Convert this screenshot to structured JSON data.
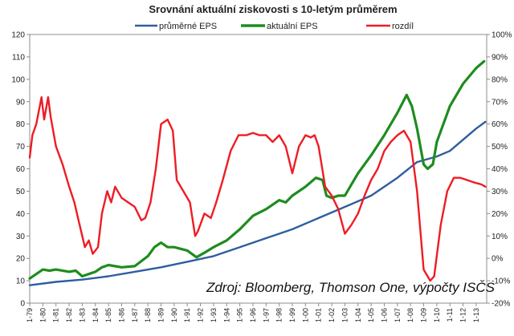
{
  "chart_data": {
    "type": "line",
    "title": "Srovnání aktuální ziskovosti s 10-letým průměrem",
    "source_note": "Zdroj: Bloomberg, Thomson One, výpočty ISČS",
    "y_left": {
      "min": 0,
      "max": 120,
      "step": 10,
      "ticks": [
        "0",
        "10",
        "20",
        "30",
        "40",
        "50",
        "60",
        "70",
        "80",
        "90",
        "100",
        "110",
        "120"
      ]
    },
    "y_right": {
      "min": -20,
      "max": 100,
      "step": 10,
      "ticks": [
        "-20%",
        "-10%",
        "0%",
        "10%",
        "20%",
        "30%",
        "40%",
        "50%",
        "60%",
        "70%",
        "80%",
        "90%",
        "100%"
      ]
    },
    "x_ticks": [
      "1-79",
      "1-80",
      "1-81",
      "1-82",
      "1-83",
      "1-84",
      "1-85",
      "1-86",
      "1-87",
      "1-88",
      "1-89",
      "1-90",
      "1-91",
      "1-92",
      "1-93",
      "1-94",
      "1-95",
      "1-96",
      "1-97",
      "1-98",
      "1-99",
      "1-00",
      "1-01",
      "1-02",
      "1-03",
      "1-04",
      "1-05",
      "1-06",
      "1-07",
      "1-08",
      "1-09",
      "1-10",
      "1-11",
      "1-12",
      "1-13"
    ],
    "x_range": [
      1979.0,
      2013.8
    ],
    "series": [
      {
        "name": "průměrné EPS",
        "axis": "left",
        "color": "#2e5e9e",
        "points": [
          [
            1979.0,
            8
          ],
          [
            1981,
            9.5
          ],
          [
            1983,
            10.5
          ],
          [
            1985,
            12
          ],
          [
            1987,
            14
          ],
          [
            1989,
            16
          ],
          [
            1991,
            18.5
          ],
          [
            1993,
            21
          ],
          [
            1995,
            25
          ],
          [
            1997,
            29
          ],
          [
            1999,
            33
          ],
          [
            2001,
            38
          ],
          [
            2003,
            43
          ],
          [
            2005,
            48
          ],
          [
            2007,
            56
          ],
          [
            2008.5,
            63
          ],
          [
            2010,
            65.5
          ],
          [
            2011,
            68
          ],
          [
            2012,
            73
          ],
          [
            2013,
            78
          ],
          [
            2013.7,
            81
          ]
        ]
      },
      {
        "name": "aktuální EPS",
        "axis": "left",
        "color": "#1e8c1e",
        "points": [
          [
            1979.0,
            11
          ],
          [
            1979.5,
            13
          ],
          [
            1980,
            15
          ],
          [
            1980.5,
            14.5
          ],
          [
            1981,
            15
          ],
          [
            1982,
            14
          ],
          [
            1982.5,
            14.5
          ],
          [
            1983,
            12
          ],
          [
            1983.5,
            13
          ],
          [
            1984,
            14
          ],
          [
            1984.5,
            16
          ],
          [
            1985,
            17
          ],
          [
            1986,
            16
          ],
          [
            1987,
            16.5
          ],
          [
            1988,
            21
          ],
          [
            1988.5,
            25
          ],
          [
            1989,
            27
          ],
          [
            1989.5,
            25
          ],
          [
            1990,
            25
          ],
          [
            1991,
            23.5
          ],
          [
            1991.7,
            20.5
          ],
          [
            1992.3,
            22.5
          ],
          [
            1993,
            25
          ],
          [
            1994,
            28
          ],
          [
            1995,
            33
          ],
          [
            1995.5,
            36
          ],
          [
            1996,
            39
          ],
          [
            1997,
            42
          ],
          [
            1998,
            46
          ],
          [
            1998.5,
            45
          ],
          [
            1999,
            48
          ],
          [
            2000,
            52
          ],
          [
            2000.8,
            56
          ],
          [
            2001.3,
            55
          ],
          [
            2001.6,
            48
          ],
          [
            2002,
            47
          ],
          [
            2002.5,
            48
          ],
          [
            2003,
            48
          ],
          [
            2003.5,
            53
          ],
          [
            2004,
            58
          ],
          [
            2005,
            66
          ],
          [
            2006,
            75
          ],
          [
            2007,
            85
          ],
          [
            2007.7,
            93
          ],
          [
            2008.1,
            88
          ],
          [
            2008.5,
            78
          ],
          [
            2009,
            62
          ],
          [
            2009.3,
            60
          ],
          [
            2009.7,
            62
          ],
          [
            2010,
            72
          ],
          [
            2011,
            88
          ],
          [
            2012,
            98
          ],
          [
            2013,
            105
          ],
          [
            2013.6,
            108
          ]
        ]
      },
      {
        "name": "rozdíl",
        "axis": "right",
        "color": "#ee1c24",
        "points": [
          [
            1979.0,
            45
          ],
          [
            1979.2,
            55
          ],
          [
            1979.5,
            60
          ],
          [
            1979.9,
            72
          ],
          [
            1980.1,
            62
          ],
          [
            1980.4,
            72
          ],
          [
            1980.6,
            63
          ],
          [
            1981,
            50
          ],
          [
            1981.5,
            42
          ],
          [
            1982,
            32
          ],
          [
            1982.4,
            25
          ],
          [
            1982.8,
            15
          ],
          [
            1983.2,
            5
          ],
          [
            1983.5,
            8
          ],
          [
            1983.8,
            2
          ],
          [
            1984.2,
            5
          ],
          [
            1984.5,
            20
          ],
          [
            1984.9,
            30
          ],
          [
            1985.2,
            25
          ],
          [
            1985.5,
            32
          ],
          [
            1986,
            27
          ],
          [
            1986.5,
            25
          ],
          [
            1987,
            23
          ],
          [
            1987.5,
            17
          ],
          [
            1987.8,
            18
          ],
          [
            1988.2,
            25
          ],
          [
            1988.6,
            40
          ],
          [
            1989.0,
            60
          ],
          [
            1989.5,
            62
          ],
          [
            1989.9,
            57
          ],
          [
            1990.2,
            35
          ],
          [
            1990.7,
            30
          ],
          [
            1991.2,
            25
          ],
          [
            1991.6,
            10
          ],
          [
            1991.8,
            12
          ],
          [
            1992.3,
            20
          ],
          [
            1992.8,
            18
          ],
          [
            1993.2,
            25
          ],
          [
            1993.7,
            35
          ],
          [
            1994.3,
            48
          ],
          [
            1994.9,
            55
          ],
          [
            1995.5,
            55
          ],
          [
            1996,
            56
          ],
          [
            1996.5,
            55
          ],
          [
            1997,
            55
          ],
          [
            1997.5,
            52
          ],
          [
            1998,
            55
          ],
          [
            1998.5,
            50
          ],
          [
            1999,
            38
          ],
          [
            1999.5,
            50
          ],
          [
            2000,
            55
          ],
          [
            2000.4,
            54
          ],
          [
            2000.7,
            55
          ],
          [
            2001,
            50
          ],
          [
            2001.5,
            32
          ],
          [
            2002,
            28
          ],
          [
            2002.5,
            22
          ],
          [
            2003,
            11
          ],
          [
            2003.5,
            15
          ],
          [
            2004,
            20
          ],
          [
            2004.5,
            28
          ],
          [
            2005,
            35
          ],
          [
            2005.5,
            40
          ],
          [
            2006,
            48
          ],
          [
            2006.5,
            52
          ],
          [
            2007,
            55
          ],
          [
            2007.5,
            57
          ],
          [
            2008,
            52
          ],
          [
            2008.5,
            30
          ],
          [
            2009,
            -5
          ],
          [
            2009.5,
            -10
          ],
          [
            2009.8,
            -8
          ],
          [
            2010.3,
            15
          ],
          [
            2010.8,
            30
          ],
          [
            2011.3,
            36
          ],
          [
            2011.8,
            36
          ],
          [
            2012.3,
            35
          ],
          [
            2012.8,
            34
          ],
          [
            2013.4,
            33
          ],
          [
            2013.7,
            32
          ]
        ]
      }
    ]
  }
}
